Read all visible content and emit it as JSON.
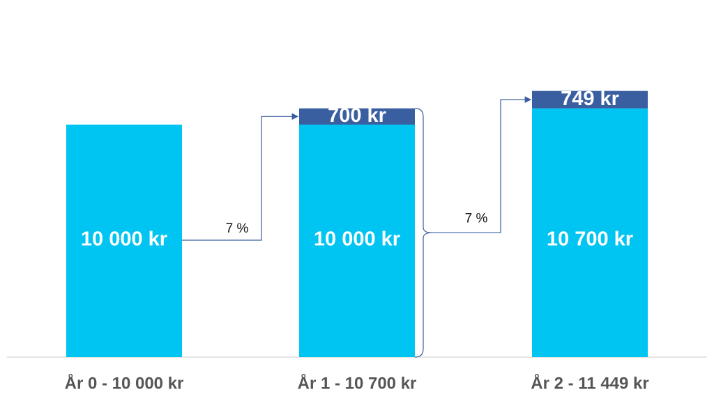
{
  "chart_data": {
    "type": "bar",
    "stacked": true,
    "categories": [
      "År 0 - 10 000 kr",
      "År 1 - 10 700 kr",
      "År 2 - 11 449 kr"
    ],
    "series": [
      {
        "color": "#00c5f2",
        "values": [
          10000,
          10000,
          10700
        ],
        "value_labels": [
          "10 000 kr",
          "10 000 kr",
          "10 700 kr"
        ]
      },
      {
        "color": "#3a5fa0",
        "values": [
          null,
          700,
          749
        ],
        "value_labels": [
          null,
          "700 kr",
          "749 kr"
        ]
      }
    ],
    "annotations": [
      "7 %",
      "7 %"
    ]
  }
}
